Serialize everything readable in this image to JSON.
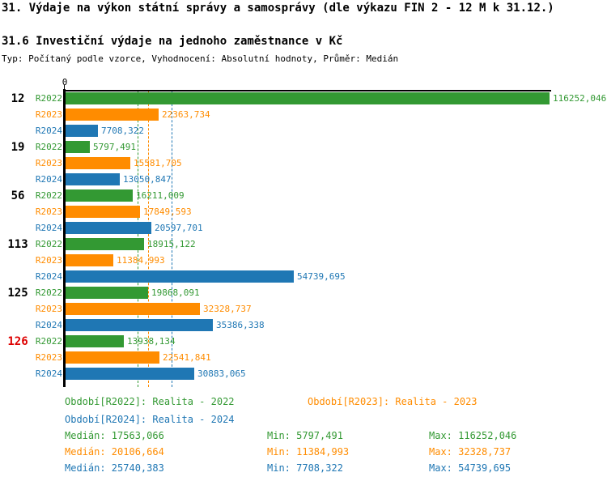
{
  "header": {
    "title": "31. Výdaje na výkon státní správy a samosprávy (dle výkazu FIN 2 - 12 M k 31.12.)",
    "subtitle": "31.6 Investiční výdaje na jednoho zaměstnance v Kč",
    "meta": "Typ: Počítaný podle vzorce, Vyhodnocení: Absolutní hodnoty, Průměr: Medián"
  },
  "colors": {
    "series": [
      "#339933",
      "#FF8C00",
      "#1F77B4"
    ],
    "highlight": "#DD0000",
    "axis": "#000000",
    "background": "#FFFFFF"
  },
  "chart_data": {
    "type": "bar",
    "orientation": "horizontal",
    "title": "31.6 Investiční výdaje na jednoho zaměstnance v Kč",
    "axis_zero_label": "0",
    "xlim": [
      0,
      116252.046
    ],
    "max_value": 116252.046,
    "series_labels": [
      "R2022",
      "R2023",
      "R2024"
    ],
    "groups": [
      {
        "label": "12",
        "highlight": false,
        "values": [
          116252.046,
          22363.734,
          7708.322
        ],
        "value_labels": [
          "116252,046",
          "22363,734",
          "7708,322"
        ]
      },
      {
        "label": "19",
        "highlight": false,
        "values": [
          5797.491,
          15581.705,
          13050.847
        ],
        "value_labels": [
          "5797,491",
          "15581,705",
          "13050,847"
        ]
      },
      {
        "label": "56",
        "highlight": false,
        "values": [
          16211.009,
          17849.593,
          20597.701
        ],
        "value_labels": [
          "16211,009",
          "17849,593",
          "20597,701"
        ]
      },
      {
        "label": "113",
        "highlight": false,
        "values": [
          18915.122,
          11384.993,
          54739.695
        ],
        "value_labels": [
          "18915,122",
          "11384,993",
          "54739,695"
        ]
      },
      {
        "label": "125",
        "highlight": false,
        "values": [
          19868.091,
          32328.737,
          35386.338
        ],
        "value_labels": [
          "19868,091",
          "32328,737",
          "35386,338"
        ]
      },
      {
        "label": "126",
        "highlight": true,
        "values": [
          13938.134,
          22541.841,
          30883.065
        ],
        "value_labels": [
          "13938,134",
          "22541,841",
          "30883,065"
        ]
      }
    ],
    "medians": [
      17563.066,
      20106.664,
      25740.383
    ],
    "mins": [
      5797.491,
      11384.993,
      7708.322
    ],
    "maxs": [
      116252.046,
      32328.737,
      54739.695
    ]
  },
  "legend": {
    "items": [
      {
        "label": "Období[R2022]: Realita - 2022"
      },
      {
        "label": "Období[R2023]: Realita - 2023"
      },
      {
        "label": "Období[R2024]: Realita - 2024"
      }
    ],
    "stats": [
      {
        "median": "Medián: 17563,066",
        "min": "Min: 5797,491",
        "max": "Max: 116252,046"
      },
      {
        "median": "Medián: 20106,664",
        "min": "Min: 11384,993",
        "max": "Max: 32328,737"
      },
      {
        "median": "Medián: 25740,383",
        "min": "Min: 7708,322",
        "max": "Max: 54739,695"
      }
    ]
  }
}
